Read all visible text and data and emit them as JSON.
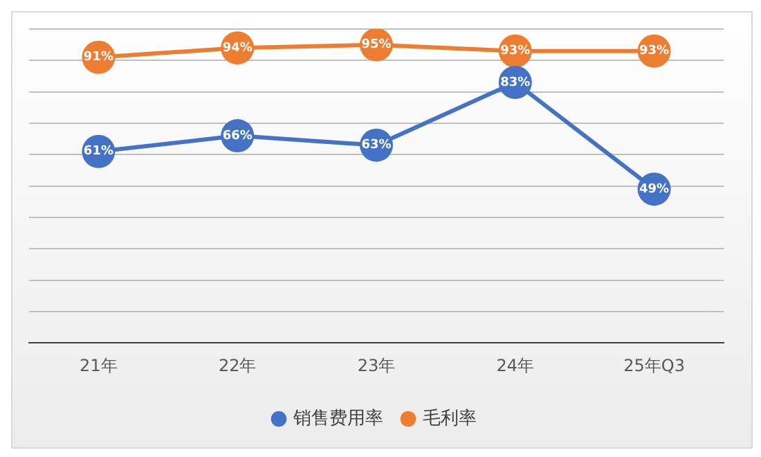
{
  "chart_data": {
    "type": "line",
    "categories": [
      "21年",
      "22年",
      "23年",
      "24年",
      "25年Q3"
    ],
    "series": [
      {
        "name": "销售费用率",
        "color": "#4472c4",
        "values": [
          61,
          66,
          63,
          83,
          49
        ],
        "value_labels": [
          "61%",
          "66%",
          "63%",
          "83%",
          "49%"
        ]
      },
      {
        "name": "毛利率",
        "color": "#ed7d31",
        "values": [
          91,
          94,
          95,
          93,
          93
        ],
        "value_labels": [
          "91%",
          "94%",
          "95%",
          "93%",
          "93%"
        ]
      }
    ],
    "ylim": [
      0,
      100
    ],
    "yticks": [
      0,
      10,
      20,
      30,
      40,
      50,
      60,
      70,
      80,
      90,
      100
    ],
    "tick_labels": "x",
    "grid": "y",
    "legend": "bottom",
    "marker": "circle",
    "line_style": "solid"
  }
}
